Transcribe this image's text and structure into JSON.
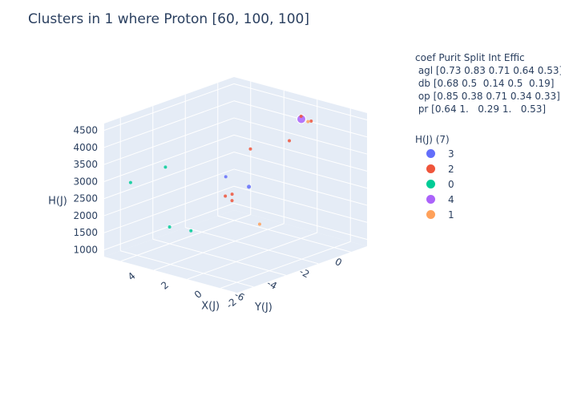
{
  "chart_data": {
    "type": "scatter3d",
    "title": "Clusters in 1 where Proton [60, 100, 100]",
    "axes": {
      "x": {
        "label": "X(J)",
        "ticks": [
          "-2",
          "0",
          "2",
          "4"
        ],
        "range": [
          -3,
          5
        ]
      },
      "y": {
        "label": "Y(J)",
        "ticks": [
          "-6",
          "-4",
          "-2",
          "0"
        ],
        "range": [
          -7,
          1
        ]
      },
      "z": {
        "label": "H(J)",
        "ticks": [
          "1000",
          "1500",
          "2000",
          "2500",
          "3000",
          "3500",
          "4000",
          "4500"
        ],
        "range": [
          800,
          4700
        ]
      }
    },
    "legend_header": {
      "title": "coef Purit Split Int Effic",
      "rows": [
        "agl [0.73 0.83 0.71 0.64 0.53]",
        "db [0.68 0.5  0.14 0.5  0.19]",
        "op [0.85 0.38 0.71 0.34 0.33]",
        "pr [0.64 1.   0.29 1.   0.53]"
      ]
    },
    "legend_title": "H(J) (7)",
    "series": [
      {
        "name": "3",
        "color": "#636efa"
      },
      {
        "name": "2",
        "color": "#ef553b"
      },
      {
        "name": "0",
        "color": "#00cc96"
      },
      {
        "name": "4",
        "color": "#ab63fa"
      },
      {
        "name": "1",
        "color": "#ffa15a"
      }
    ],
    "points": [
      {
        "series": "4",
        "x": -1.0,
        "y": -1.0,
        "z": 4600,
        "size": 10
      },
      {
        "series": "1",
        "x": -1.3,
        "y": -0.9,
        "z": 4550,
        "size": 3
      },
      {
        "series": "2",
        "x": -1.2,
        "y": -0.6,
        "z": 4500,
        "size": 3
      },
      {
        "series": "2",
        "x": -0.4,
        "y": -0.4,
        "z": 4500,
        "size": 3
      },
      {
        "series": "2",
        "x": 0.5,
        "y": -2.6,
        "z": 3800,
        "size": 3
      },
      {
        "series": "2",
        "x": 0.6,
        "y": -0.1,
        "z": 3600,
        "size": 3
      },
      {
        "series": "0",
        "x": 2.0,
        "y": -6.3,
        "z": 3700,
        "size": 3
      },
      {
        "series": "0",
        "x": 4.0,
        "y": -6.4,
        "z": 3000,
        "size": 3
      },
      {
        "series": "3",
        "x": 1.3,
        "y": -3.3,
        "z": 3000,
        "size": 3
      },
      {
        "series": "3",
        "x": 0.2,
        "y": -3.0,
        "z": 2800,
        "size": 4
      },
      {
        "series": "2",
        "x": 1.7,
        "y": -2.5,
        "z": 2300,
        "size": 3
      },
      {
        "series": "2",
        "x": 1.9,
        "y": -2.3,
        "z": 2050,
        "size": 3
      },
      {
        "series": "2",
        "x": 2.4,
        "y": -2.2,
        "z": 2100,
        "size": 3
      },
      {
        "series": "0",
        "x": 3.8,
        "y": -4.2,
        "z": 1350,
        "size": 3
      },
      {
        "series": "0",
        "x": 3.2,
        "y": -3.5,
        "z": 1200,
        "size": 3
      },
      {
        "series": "1",
        "x": 1.8,
        "y": -0.7,
        "z": 1100,
        "size": 3
      }
    ]
  }
}
